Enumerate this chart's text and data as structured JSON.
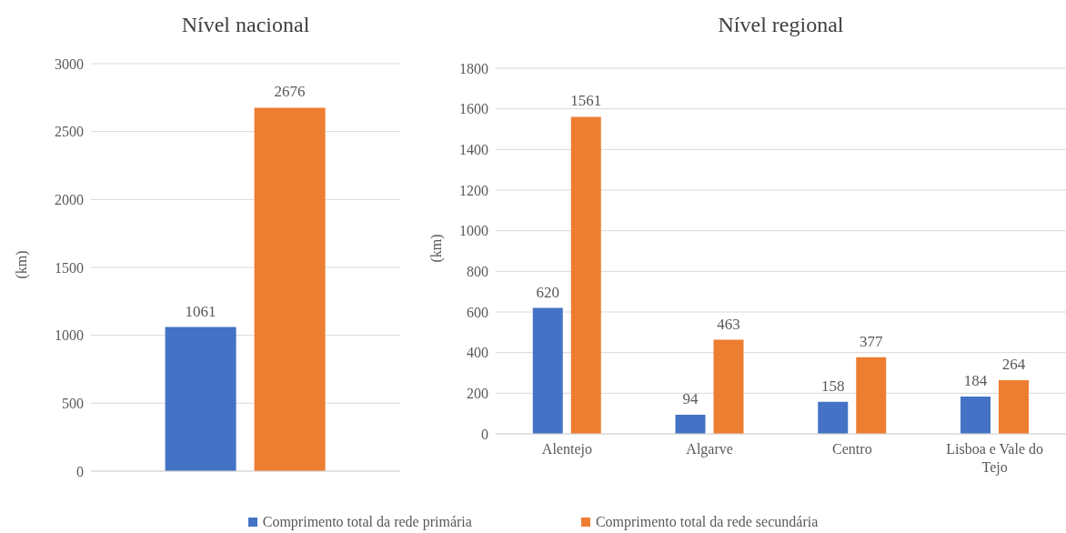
{
  "chart_data": [
    {
      "type": "bar",
      "title": "Nível nacional",
      "ylabel": "(km)",
      "categories": [
        null
      ],
      "series": [
        {
          "name": "Comprimento total da rede primária",
          "color": "#4472c4",
          "values": [
            1061
          ]
        },
        {
          "name": "Comprimento total da rede secundária",
          "color": "#ed7d31",
          "values": [
            2676
          ]
        }
      ],
      "ylim": [
        0,
        3000
      ],
      "yticks": [
        0,
        500,
        1000,
        1500,
        2000,
        2500,
        3000
      ],
      "grid": "y",
      "data_labels": true,
      "legend": "bottom"
    },
    {
      "type": "bar",
      "title": "Nível regional",
      "ylabel": "(km)",
      "categories": [
        "Alentejo",
        "Algarve",
        "Centro",
        "Lisboa e Vale do Tejo"
      ],
      "series": [
        {
          "name": "Comprimento total da rede primária",
          "color": "#4472c4",
          "values": [
            620,
            94,
            158,
            184
          ]
        },
        {
          "name": "Comprimento total da rede secundária",
          "color": "#ed7d31",
          "values": [
            1561,
            463,
            377,
            264
          ]
        }
      ],
      "ylim": [
        0,
        1800
      ],
      "yticks": [
        0,
        200,
        400,
        600,
        800,
        1000,
        1200,
        1400,
        1600,
        1800
      ],
      "grid": "y",
      "data_labels": true,
      "legend": "bottom"
    }
  ]
}
